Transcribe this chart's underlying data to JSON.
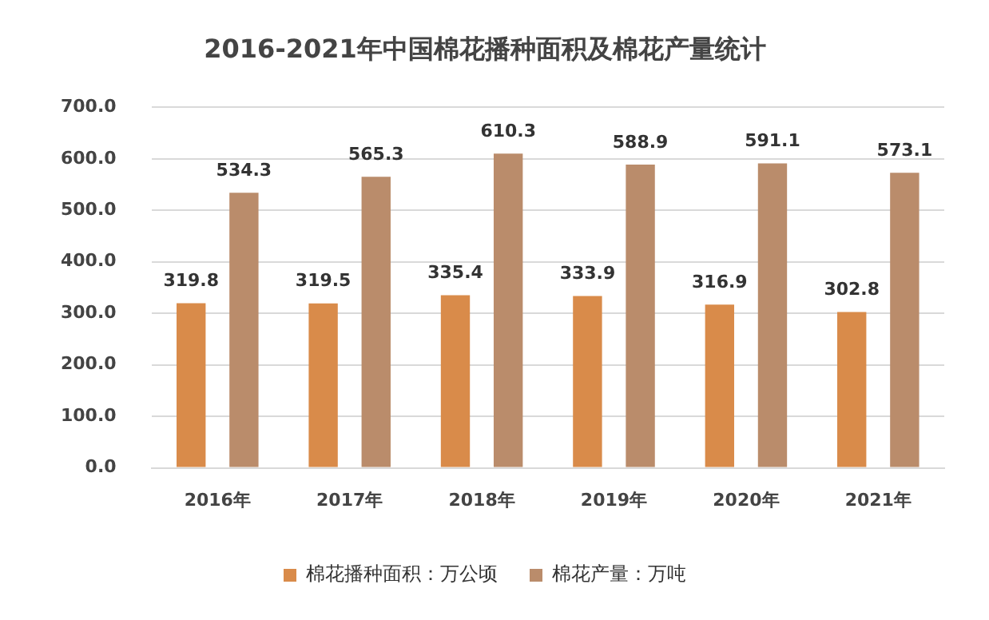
{
  "chart_data": {
    "type": "bar",
    "title": "2016-2021年中国棉花播种面积及棉花产量统计",
    "categories": [
      "2016年",
      "2017年",
      "2018年",
      "2019年",
      "2020年",
      "2021年"
    ],
    "series": [
      {
        "name": "棉花播种面积：万公顷",
        "color": "#d98b4a",
        "values": [
          319.8,
          319.5,
          335.4,
          333.9,
          316.9,
          302.8
        ]
      },
      {
        "name": "棉花产量：万吨",
        "color": "#ba8c6b",
        "values": [
          534.3,
          565.3,
          610.3,
          588.9,
          591.1,
          573.1
        ]
      }
    ],
    "ylim": [
      0,
      700
    ],
    "yticks": [
      {
        "value": 0,
        "label": "0.0"
      },
      {
        "value": 100,
        "label": "100.0"
      },
      {
        "value": 200,
        "label": "200.0"
      },
      {
        "value": 300,
        "label": "300.0"
      },
      {
        "value": 400,
        "label": "400.0"
      },
      {
        "value": 500,
        "label": "500.0"
      },
      {
        "value": 600,
        "label": "600.0"
      },
      {
        "value": 700,
        "label": "700.0"
      }
    ],
    "grid": "y",
    "legend": "bottom",
    "data_labels": true
  }
}
